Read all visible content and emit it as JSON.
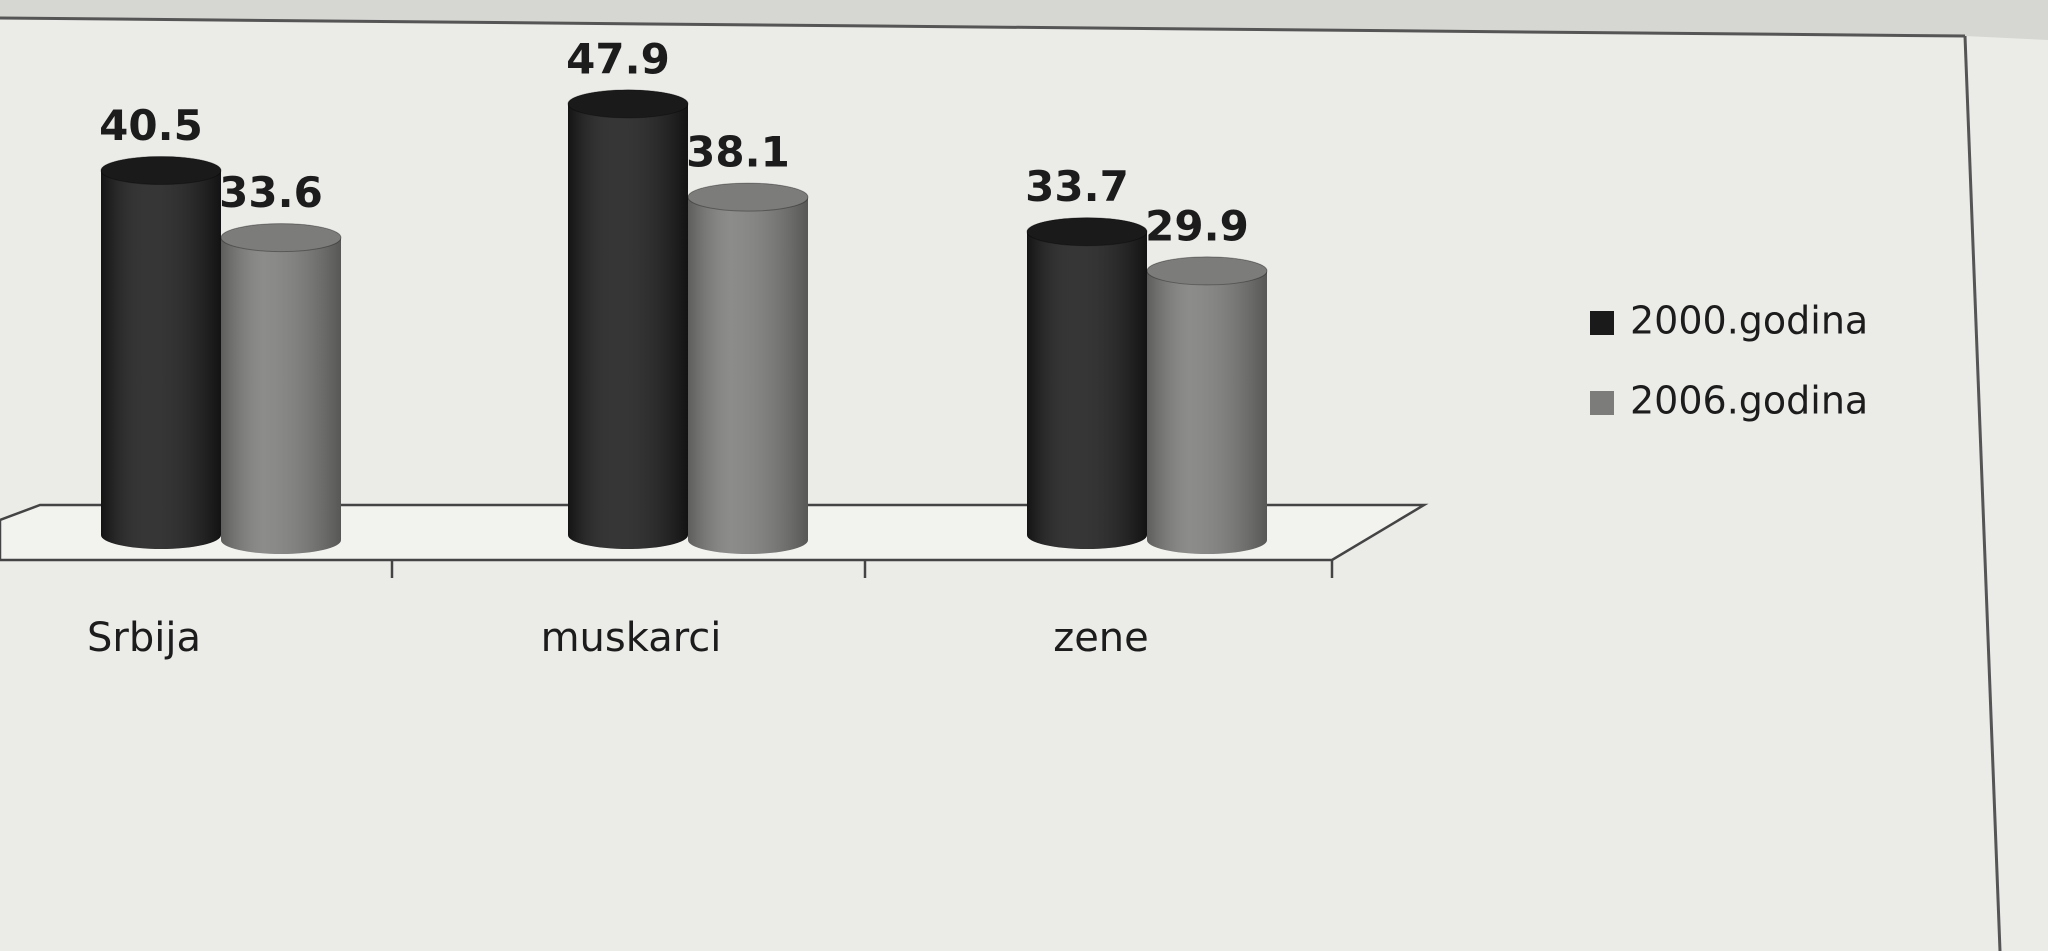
{
  "chart_data": {
    "type": "bar",
    "categories": [
      "Srbija",
      "muskarci",
      "zene"
    ],
    "series": [
      {
        "name": "2000.godina",
        "color": "#1a1a1a",
        "values": [
          40.5,
          47.9,
          33.7
        ]
      },
      {
        "name": "2006.godina",
        "color": "#7c7c7a",
        "values": [
          33.6,
          38.1,
          29.9
        ]
      }
    ]
  }
}
